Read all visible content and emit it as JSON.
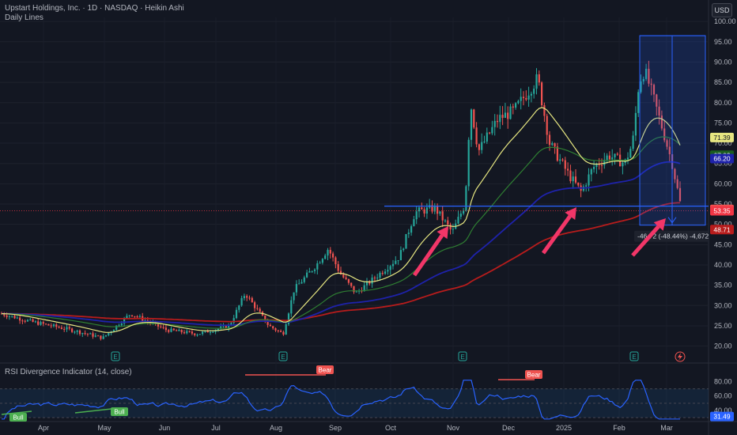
{
  "header": {
    "title": "Upstart Holdings, Inc. · 1D · NASDAQ · Heikin Ashi",
    "subtitle": "Daily Lines",
    "currency_button": "USD"
  },
  "rsi_panel": {
    "title": "RSI Divergence Indicator (14, close)",
    "ticks": [
      "80.00",
      "60.00",
      "40.00"
    ],
    "current_label": "31.49",
    "divergences": [
      {
        "type": "Bull",
        "label": "Bull"
      },
      {
        "type": "Bull",
        "label": "Bull"
      },
      {
        "type": "Bear",
        "label": "Bear"
      },
      {
        "type": "Bear",
        "label": "Bear"
      }
    ]
  },
  "measurement": {
    "label": "-46.72 (-48.44%) -4,672"
  },
  "earnings_marker": "E",
  "colors": {
    "background": "#131722",
    "up": "#26a69a",
    "down": "#ef5350",
    "ema_yellow": "#e6e681",
    "ema_green": "#2e7d32",
    "ema_blue": "#1e22aa",
    "ema_red": "#b71c1c",
    "support_line": "#2962ff",
    "arrow": "#f23668",
    "rsi_line": "#2962ff"
  },
  "chart_data": {
    "type": "candlestick",
    "y_axis": {
      "ylim": [
        17,
        101
      ],
      "ticks": [
        "100.00",
        "95.00",
        "90.00",
        "85.00",
        "80.00",
        "75.00",
        "70.00",
        "65.00",
        "60.00",
        "55.00",
        "50.00",
        "45.00",
        "40.00",
        "35.00",
        "30.00",
        "25.00",
        "20.00"
      ],
      "tick_values": [
        100,
        95,
        90,
        85,
        80,
        75,
        70,
        65,
        60,
        55,
        50,
        45,
        40,
        35,
        30,
        25,
        20
      ]
    },
    "x_axis": {
      "labels": [
        "Apr",
        "May",
        "Jun",
        "Jul",
        "Aug",
        "Sep",
        "Oct",
        "Nov",
        "Dec",
        "2025",
        "Feb",
        "Mar"
      ]
    },
    "price_labels": [
      {
        "text": "71.39",
        "value": 71.39,
        "bg": "#e6e681",
        "fg": "#131722"
      },
      {
        "text": "67.03",
        "value": 67.03,
        "bg": "#1b5e20",
        "fg": "#ffffff"
      },
      {
        "text": "66.20",
        "value": 66.2,
        "bg": "#1e22aa",
        "fg": "#ffffff"
      },
      {
        "text": "53.69",
        "value": 53.69,
        "bg": "#ef5350",
        "fg": "#ffffff"
      },
      {
        "text": "53.35",
        "value": 53.35,
        "bg": "#f23645",
        "fg": "#ffffff"
      },
      {
        "text": "48.71",
        "value": 48.71,
        "bg": "#b71c1c",
        "fg": "#ffffff"
      }
    ],
    "support_level": 54.5,
    "close_level": 53.35,
    "measurement_box": {
      "top": 96.5,
      "bottom": 49.8
    },
    "legend": "none",
    "grid": true
  }
}
